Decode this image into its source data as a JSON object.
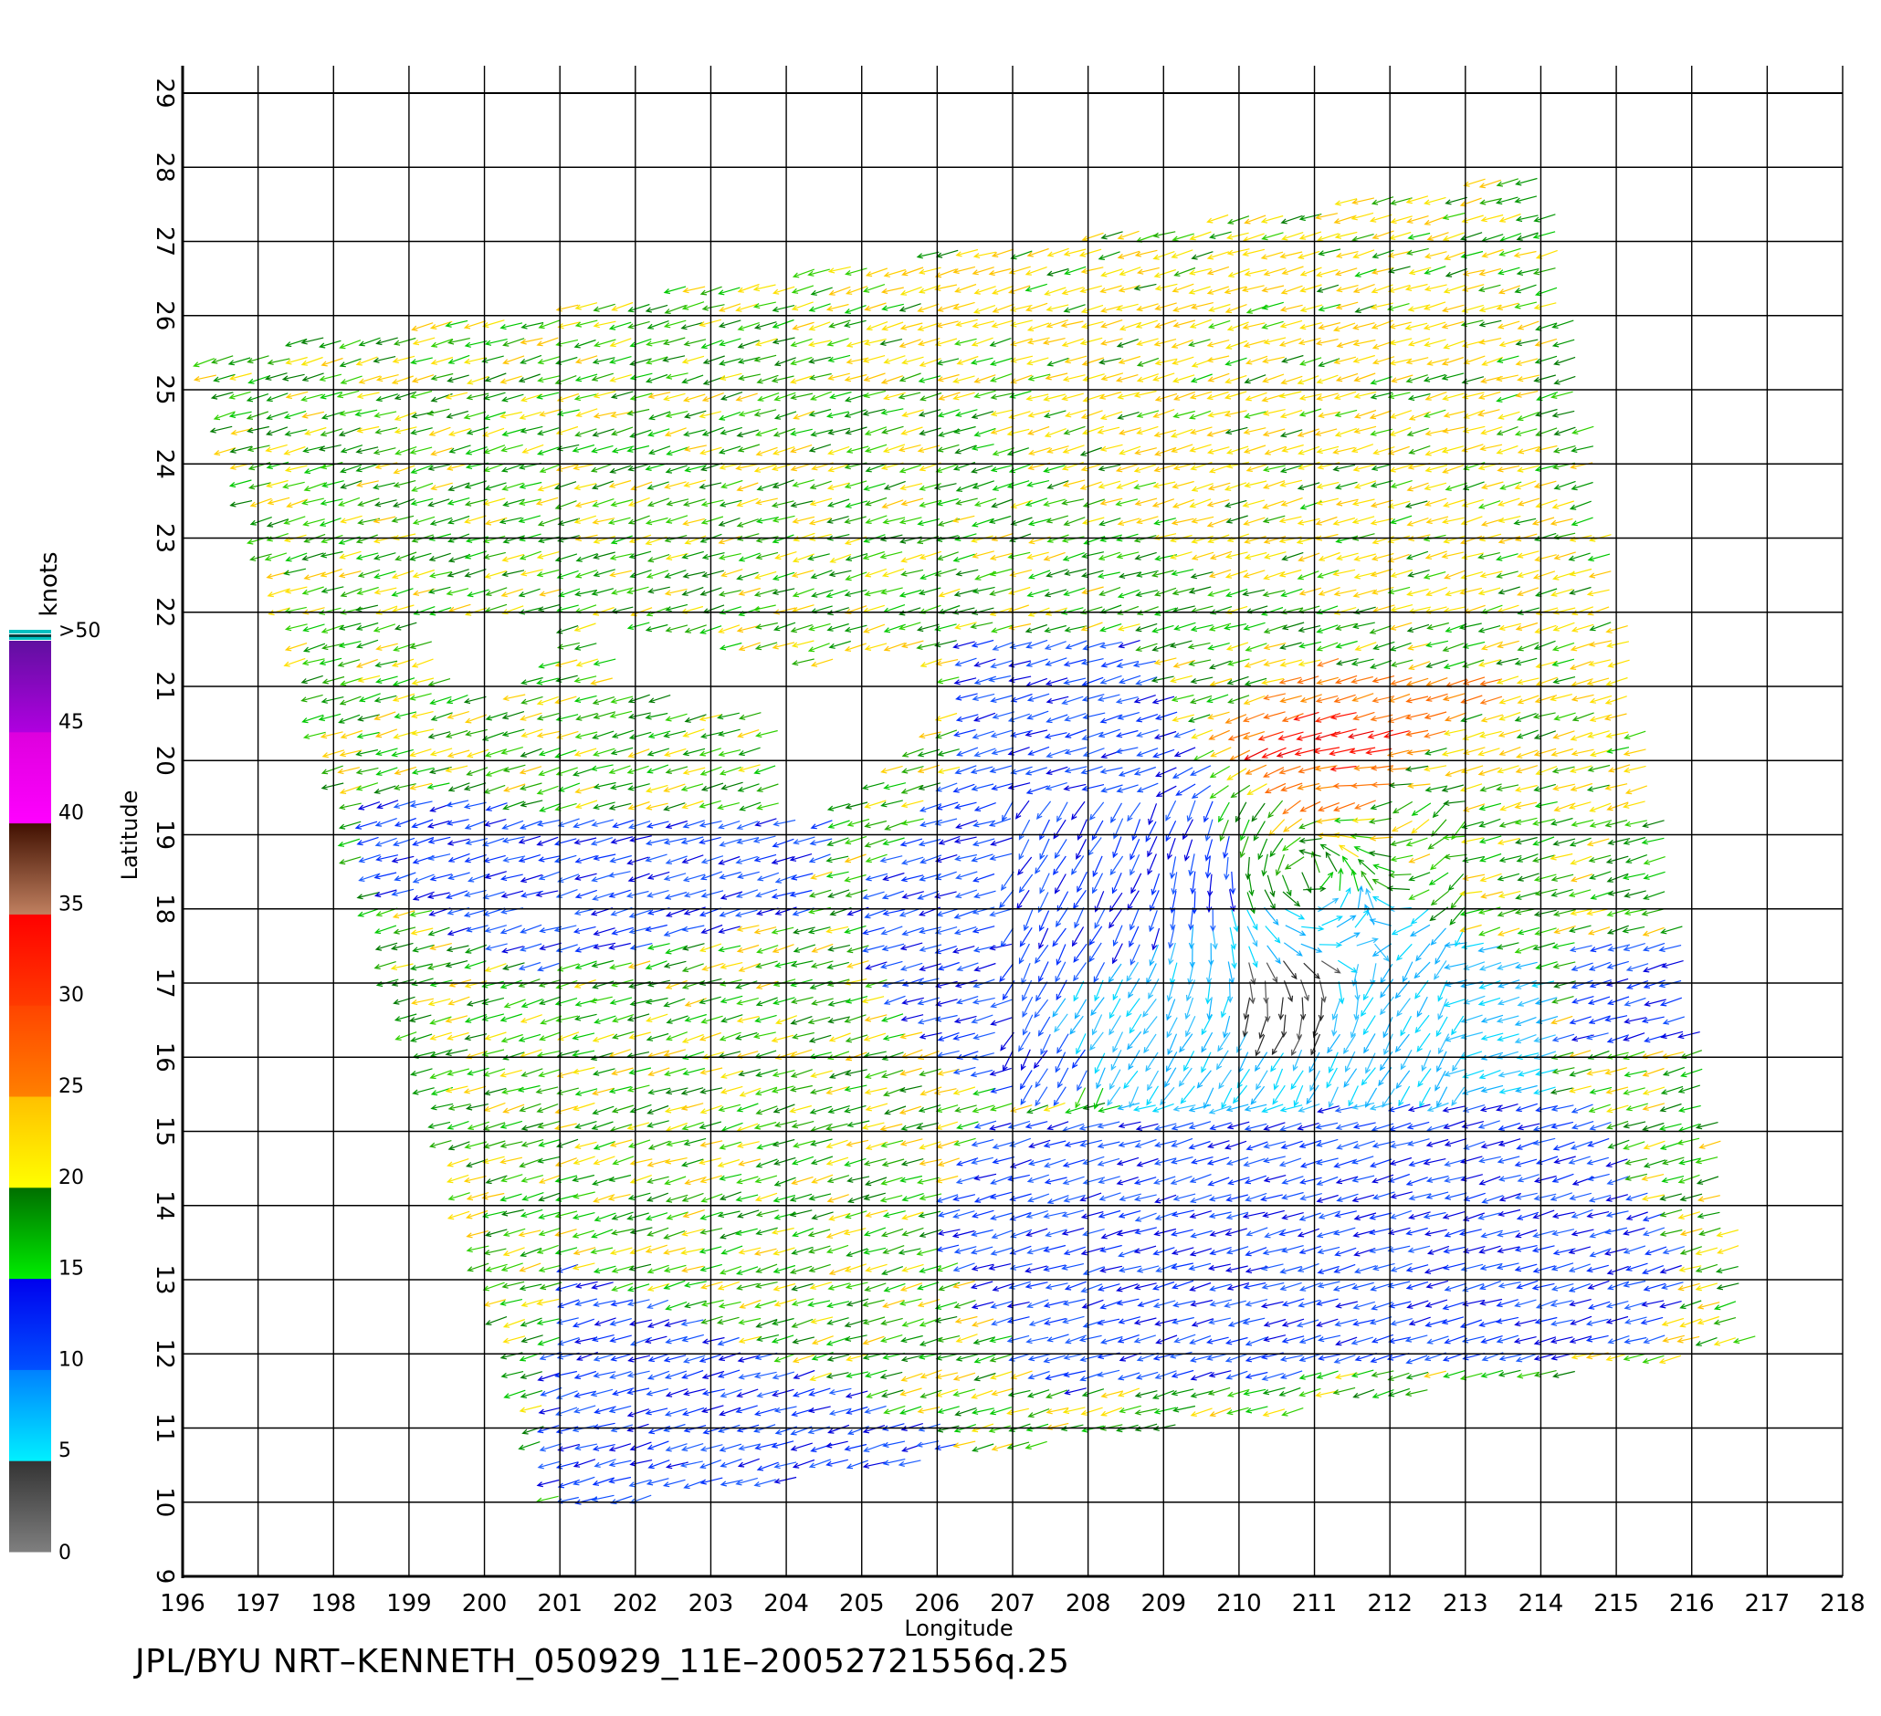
{
  "chart_data": {
    "type": "vector-field",
    "xlabel": "Longitude",
    "ylabel": "Latitude",
    "xlim": [
      196,
      218
    ],
    "ylim": [
      9,
      29
    ],
    "x_ticks": [
      "196",
      "197",
      "198",
      "199",
      "200",
      "201",
      "202",
      "203",
      "204",
      "205",
      "206",
      "207",
      "208",
      "209",
      "210",
      "211",
      "212",
      "213",
      "214",
      "215",
      "216",
      "217",
      "218"
    ],
    "y_ticks": [
      "9",
      "10",
      "11",
      "12",
      "13",
      "14",
      "15",
      "16",
      "17",
      "18",
      "19",
      "20",
      "21",
      "22",
      "23",
      "24",
      "25",
      "26",
      "27",
      "28",
      "29"
    ],
    "grid": true,
    "colorbar": {
      "title": "knots",
      "tick_labels": [
        "0",
        "5",
        "10",
        "15",
        "20",
        "25",
        "30",
        "35",
        "40",
        "45",
        ">50"
      ],
      "segments": [
        {
          "from": 0,
          "to": 5,
          "colors": [
            "#7f7f7f",
            "#333333"
          ]
        },
        {
          "from": 5,
          "to": 10,
          "colors": [
            "#00f0ff",
            "#0080ff"
          ]
        },
        {
          "from": 10,
          "to": 15,
          "colors": [
            "#0050ff",
            "#0000ee"
          ]
        },
        {
          "from": 15,
          "to": 20,
          "colors": [
            "#00ee00",
            "#006e00"
          ]
        },
        {
          "from": 20,
          "to": 25,
          "colors": [
            "#ffff00",
            "#ffc000"
          ]
        },
        {
          "from": 25,
          "to": 30,
          "colors": [
            "#ff8000",
            "#ff4400"
          ]
        },
        {
          "from": 30,
          "to": 35,
          "colors": [
            "#ff3a00",
            "#ff0000"
          ]
        },
        {
          "from": 35,
          "to": 40,
          "colors": [
            "#c08060",
            "#401000"
          ]
        },
        {
          "from": 40,
          "to": 45,
          "colors": [
            "#ff00ff",
            "#dd00dd"
          ]
        },
        {
          "from": 45,
          "to": 50,
          "colors": [
            "#b000e0",
            "#6010a0"
          ]
        }
      ],
      "cap_colors": [
        "#00c0c0",
        "#004040"
      ]
    },
    "swath_corners": [
      [
        196.3,
        25.5
      ],
      [
        214.1,
        28.0
      ],
      [
        216.9,
        12.1
      ],
      [
        201.0,
        9.9
      ]
    ],
    "storm_center": [
      210.9,
      18.5
    ],
    "data_gaps": [
      [
        [
          199.2,
          22.0
        ],
        [
          201.0,
          22.0
        ],
        [
          201.1,
          21.5
        ],
        [
          200.2,
          20.8
        ],
        [
          199.6,
          21.2
        ]
      ],
      [
        [
          201.6,
          22.0
        ],
        [
          202.8,
          21.7
        ],
        [
          204.8,
          21.2
        ],
        [
          204.0,
          20.6
        ],
        [
          203.1,
          20.8
        ],
        [
          201.8,
          21.1
        ]
      ],
      [
        [
          204.3,
          21.3
        ],
        [
          205.8,
          21.5
        ],
        [
          206.4,
          20.8
        ],
        [
          205.5,
          20.0
        ],
        [
          204.2,
          19.0
        ],
        [
          203.8,
          20.2
        ]
      ],
      [
        [
          200.5,
          18.2
        ],
        [
          201.4,
          18.1
        ],
        [
          201.2,
          17.9
        ],
        [
          200.6,
          17.9
        ]
      ]
    ],
    "speed_regions": [
      {
        "label": "20-25",
        "polygon": [
          [
            205.4,
            27.0
          ],
          [
            213.5,
            27.9
          ],
          [
            214.6,
            22.2
          ],
          [
            213.6,
            21.8
          ],
          [
            210.0,
            22.4
          ],
          [
            206.8,
            24.5
          ],
          [
            205.1,
            25.7
          ]
        ]
      },
      {
        "label": "20-25",
        "polygon": [
          [
            214.2,
            22.8
          ],
          [
            215.5,
            21.9
          ],
          [
            215.6,
            19.2
          ],
          [
            213.8,
            19.6
          ],
          [
            212.3,
            19.9
          ]
        ]
      },
      {
        "label": "25-30",
        "polygon": [
          [
            209.7,
            20.5
          ],
          [
            211.3,
            21.4
          ],
          [
            213.8,
            21.1
          ],
          [
            212.8,
            20.3
          ],
          [
            211.8,
            19.3
          ],
          [
            210.8,
            19.4
          ]
        ]
      },
      {
        "label": "30-35",
        "polygon": [
          [
            210.1,
            20.2
          ],
          [
            211.6,
            19.9
          ],
          [
            212.7,
            20.3
          ],
          [
            211.3,
            20.8
          ]
        ]
      },
      {
        "label": "15-20",
        "polygon": [
          [
            209.6,
            19.3
          ],
          [
            210.4,
            19.2
          ],
          [
            211.4,
            18.6
          ],
          [
            212.2,
            18.2
          ],
          [
            211.6,
            17.6
          ],
          [
            210.5,
            18.0
          ]
        ]
      },
      {
        "label": "10-15",
        "polygon": [
          [
            206.4,
            21.8
          ],
          [
            208.7,
            21.8
          ],
          [
            209.8,
            19.7
          ],
          [
            210.0,
            17.8
          ],
          [
            208.9,
            15.9
          ],
          [
            207.0,
            15.4
          ],
          [
            205.6,
            16.5
          ],
          [
            205.0,
            18.0
          ],
          [
            206.3,
            19.9
          ]
        ]
      },
      {
        "label": "5-10",
        "polygon": [
          [
            207.5,
            16.9
          ],
          [
            210.3,
            18.2
          ],
          [
            212.6,
            18.1
          ],
          [
            214.3,
            17.2
          ],
          [
            214.3,
            15.2
          ],
          [
            212.5,
            14.6
          ],
          [
            210.3,
            14.8
          ],
          [
            208.6,
            15.3
          ]
        ]
      },
      {
        "label": "0-5",
        "polygon": [
          [
            210.1,
            17.3
          ],
          [
            211.1,
            17.3
          ],
          [
            211.3,
            16.3
          ],
          [
            210.5,
            16.1
          ],
          [
            210.1,
            16.5
          ]
        ]
      },
      {
        "label": "10-15",
        "polygon": [
          [
            206.7,
            15.3
          ],
          [
            214.8,
            15.4
          ],
          [
            216.0,
            13.3
          ],
          [
            215.8,
            12.1
          ],
          [
            207.5,
            11.5
          ],
          [
            206.0,
            13.8
          ]
        ]
      },
      {
        "label": "10-15",
        "polygon": [
          [
            201.2,
            13.3
          ],
          [
            206.4,
            10.9
          ],
          [
            206.1,
            10.2
          ],
          [
            201.0,
            9.9
          ],
          [
            200.9,
            11.7
          ]
        ]
      },
      {
        "label": "10-15",
        "polygon": [
          [
            198.4,
            19.6
          ],
          [
            203.4,
            19.2
          ],
          [
            204.8,
            19.5
          ],
          [
            204.5,
            18.0
          ],
          [
            200.8,
            17.2
          ],
          [
            198.5,
            18.4
          ]
        ]
      },
      {
        "label": "10-15",
        "polygon": [
          [
            214.6,
            17.6
          ],
          [
            216.3,
            17.6
          ],
          [
            216.4,
            16.2
          ],
          [
            214.4,
            16.2
          ]
        ]
      }
    ]
  },
  "footer": {
    "caption": "JPL/BYU  NRT–KENNETH_050929_11E–20052721556q.25"
  }
}
